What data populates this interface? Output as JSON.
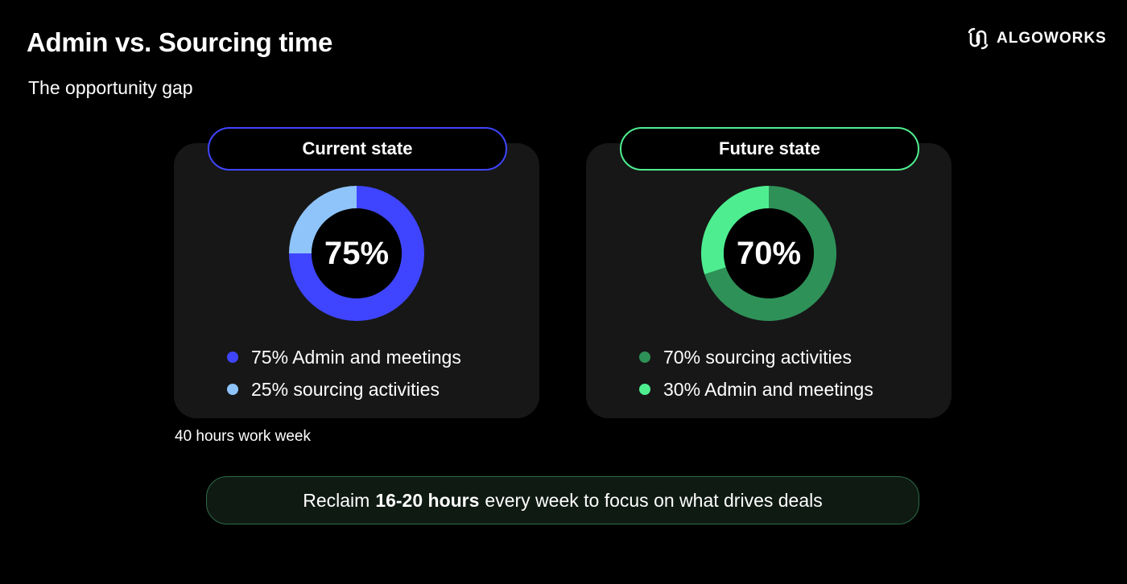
{
  "header": {
    "title": "Admin vs. Sourcing time",
    "subtitle": "The opportunity gap",
    "logo_text": "ALGOWORKS",
    "logo_icon": "algoworks-logo-icon"
  },
  "colors": {
    "current_primary": "#3f45ff",
    "current_secondary": "#8ec4fa",
    "future_primary": "#4eee90",
    "future_secondary": "#2e9158",
    "card_bg": "#171717",
    "page_bg": "#000000"
  },
  "chart_data": [
    {
      "type": "pie",
      "title": "Current state",
      "center_label": "75%",
      "slices": [
        {
          "label": "75% Admin and meetings",
          "value": 75,
          "color": "#3f45ff"
        },
        {
          "label": "25% sourcing activities",
          "value": 25,
          "color": "#8ec4fa"
        }
      ]
    },
    {
      "type": "pie",
      "title": "Future state",
      "center_label": "70%",
      "slices": [
        {
          "label": "70% sourcing activities",
          "value": 70,
          "color": "#2e9158"
        },
        {
          "label": "30% Admin and meetings",
          "value": 30,
          "color": "#4eee90"
        }
      ]
    }
  ],
  "footnote": "40 hours work week",
  "banner": {
    "prefix": "Reclaim",
    "highlight": "16-20 hours",
    "suffix": "every week to focus on what drives deals"
  }
}
